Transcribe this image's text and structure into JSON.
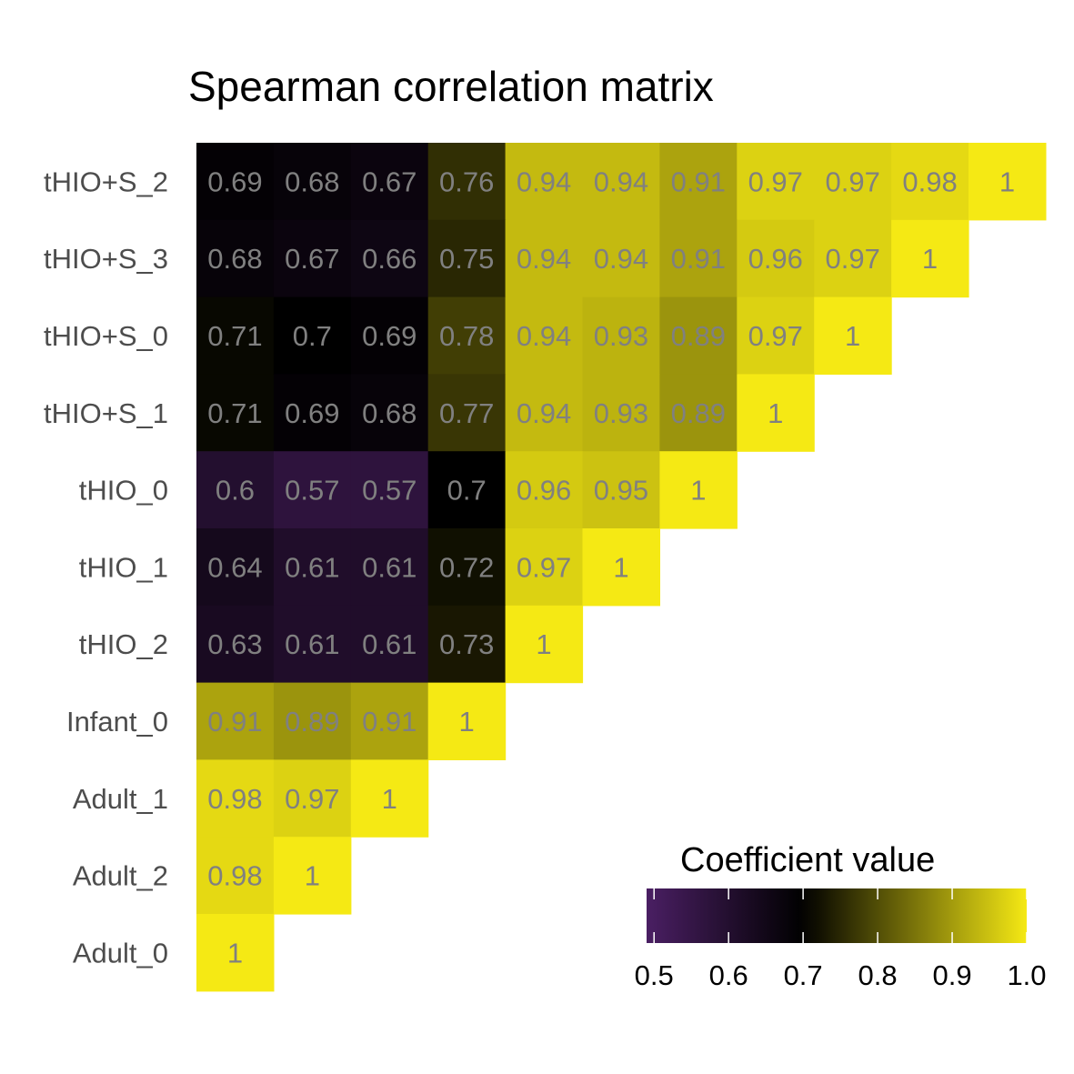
{
  "chart_data": {
    "type": "heatmap",
    "title": "Spearman correlation matrix",
    "rows": [
      "tHIO+S_2",
      "tHIO+S_3",
      "tHIO+S_0",
      "tHIO+S_1",
      "tHIO_0",
      "tHIO_1",
      "tHIO_2",
      "Infant_0",
      "Adult_1",
      "Adult_2",
      "Adult_0"
    ],
    "cell_labels": [
      [
        "0.69",
        "0.68",
        "0.67",
        "0.76",
        "0.94",
        "0.94",
        "0.91",
        "0.97",
        "0.97",
        "0.98",
        "1"
      ],
      [
        "0.68",
        "0.67",
        "0.66",
        "0.75",
        "0.94",
        "0.94",
        "0.91",
        "0.96",
        "0.97",
        "1"
      ],
      [
        "0.71",
        "0.7",
        "0.69",
        "0.78",
        "0.94",
        "0.93",
        "0.89",
        "0.97",
        "1"
      ],
      [
        "0.71",
        "0.69",
        "0.68",
        "0.77",
        "0.94",
        "0.93",
        "0.89",
        "1"
      ],
      [
        "0.6",
        "0.57",
        "0.57",
        "0.7",
        "0.96",
        "0.95",
        "1"
      ],
      [
        "0.64",
        "0.61",
        "0.61",
        "0.72",
        "0.97",
        "1"
      ],
      [
        "0.63",
        "0.61",
        "0.61",
        "0.73",
        "1"
      ],
      [
        "0.91",
        "0.89",
        "0.91",
        "1"
      ],
      [
        "0.98",
        "0.97",
        "1"
      ],
      [
        "0.98",
        "1"
      ],
      [
        "1"
      ]
    ],
    "legend": {
      "title": "Coefficient value",
      "ticks": [
        "0.5",
        "0.6",
        "0.7",
        "0.8",
        "0.9",
        "1.0"
      ],
      "range": [
        0.49,
        1.0
      ],
      "colors": {
        "low": "#4a1f63",
        "mid": "#000000",
        "high": "#f5e914"
      }
    }
  }
}
